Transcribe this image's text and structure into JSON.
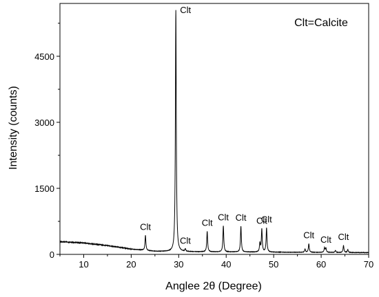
{
  "chart_data": {
    "type": "line",
    "xlabel": "Anglee 2θ (Degree)",
    "ylabel": "Intensity (counts)",
    "xlim": [
      5,
      70
    ],
    "ylim": [
      0,
      5700
    ],
    "x_ticks": [
      10,
      20,
      30,
      40,
      50,
      60,
      70
    ],
    "y_ticks": [
      0,
      1500,
      3000,
      4500
    ],
    "legend_note": "Clt=Calcite",
    "legend_placement": "top-right",
    "grid": false,
    "background": {
      "x": [
        5,
        10,
        15,
        20,
        25,
        30,
        40,
        50,
        60,
        70
      ],
      "y": [
        290,
        260,
        200,
        120,
        70,
        60,
        55,
        50,
        45,
        40
      ]
    },
    "peaks": [
      {
        "x": 23.0,
        "y": 430,
        "label": "Clt"
      },
      {
        "x": 29.4,
        "y": 5550,
        "label": "Clt"
      },
      {
        "x": 31.4,
        "y": 120,
        "label": "Clt"
      },
      {
        "x": 36.0,
        "y": 520,
        "label": "Clt"
      },
      {
        "x": 39.4,
        "y": 650,
        "label": "Clt"
      },
      {
        "x": 43.1,
        "y": 640,
        "label": "Clt"
      },
      {
        "x": 47.5,
        "y": 570,
        "label": "Clt"
      },
      {
        "x": 48.5,
        "y": 600,
        "label": "Clt"
      },
      {
        "x": 57.4,
        "y": 240,
        "label": "Clt"
      },
      {
        "x": 61.0,
        "y": 140,
        "label": "Clt"
      },
      {
        "x": 64.7,
        "y": 200,
        "label": "Clt"
      }
    ],
    "minor_peaks": [
      {
        "x": 47.1,
        "y": 250
      },
      {
        "x": 56.6,
        "y": 120
      },
      {
        "x": 60.7,
        "y": 150
      },
      {
        "x": 63.0,
        "y": 90
      },
      {
        "x": 65.6,
        "y": 110
      }
    ]
  }
}
